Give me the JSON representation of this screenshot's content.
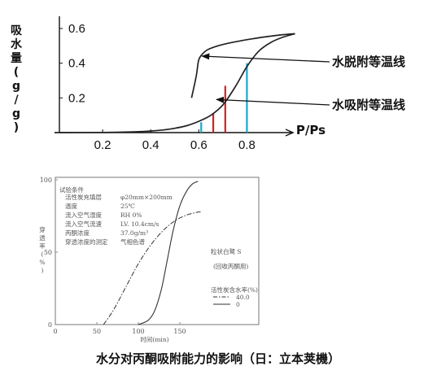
{
  "chart_data": [
    {
      "type": "line",
      "ylabel": "吸水量(g/g)",
      "xlabel": "P/Ps",
      "xlim": [
        0,
        1.0
      ],
      "ylim": [
        0,
        0.6
      ],
      "x_ticks": [
        0.2,
        0.4,
        0.6,
        0.8
      ],
      "x_tick_labels": [
        "0.2",
        "0.4",
        "0.6",
        "0.8"
      ],
      "y_ticks": [
        0.2,
        0.4,
        0.6
      ],
      "y_tick_labels": [
        "0.2",
        "0.4",
        "0.6"
      ],
      "series": [
        {
          "name": "水脱附等温线",
          "color": "#222222",
          "x": [
            0.57,
            0.59,
            0.6,
            0.62,
            0.64,
            0.68,
            0.74,
            0.82,
            0.92,
            1.0
          ],
          "y": [
            0.2,
            0.33,
            0.42,
            0.46,
            0.48,
            0.5,
            0.52,
            0.54,
            0.56,
            0.57
          ]
        },
        {
          "name": "水吸附等温线",
          "color": "#222222",
          "x": [
            0.0,
            0.2,
            0.35,
            0.45,
            0.5,
            0.55,
            0.6,
            0.65,
            0.7,
            0.75,
            0.8,
            0.85,
            0.9,
            0.95,
            1.0
          ],
          "y": [
            0.0,
            0.001,
            0.005,
            0.015,
            0.025,
            0.04,
            0.065,
            0.1,
            0.16,
            0.26,
            0.38,
            0.47,
            0.52,
            0.55,
            0.57
          ]
        }
      ],
      "markers": [
        {
          "x": 0.61,
          "y_top": 0.06,
          "color": "#1aa7c9"
        },
        {
          "x": 0.66,
          "y_top": 0.11,
          "color": "#d32020"
        },
        {
          "x": 0.71,
          "y_top": 0.27,
          "color": "#d32020"
        },
        {
          "x": 0.8,
          "y_top": 0.4,
          "color": "#1aa7c9"
        }
      ],
      "annotations": [
        {
          "text": "水脱附等温线",
          "point_x": 0.6,
          "point_y": 0.45
        },
        {
          "text": "水吸附等温线",
          "point_x": 0.66,
          "point_y": 0.2
        }
      ]
    },
    {
      "type": "line",
      "ylabel": "穿透率(%)",
      "xlabel": "时间(min)",
      "xlim": [
        0,
        180
      ],
      "ylim": [
        0,
        100
      ],
      "x_ticks": [
        0,
        50,
        100,
        150
      ],
      "x_tick_labels": [
        "0",
        "50",
        "100",
        "150"
      ],
      "y_ticks": [
        0,
        50,
        100
      ],
      "y_tick_labels": [
        "0",
        "50",
        "100"
      ],
      "conditions_title": "试验条件",
      "conditions": [
        [
          "活性炭充填层",
          "φ20mm×200mm"
        ],
        [
          "温度",
          "25℃"
        ],
        [
          "流入空气湿度",
          "RH 0%"
        ],
        [
          "流入空气流速",
          "LV. 10.4cm/s"
        ],
        [
          "丙酮浓度",
          "37.0g/m³"
        ],
        [
          "穿透浓度的测定",
          "气相色谱"
        ]
      ],
      "label_sample": "粒状白鹭 S",
      "label_recovery": "(回收丙酮用)",
      "legend_title": "活性炭含水率(%)",
      "series": [
        {
          "name": "40.0",
          "style": "dashed",
          "x": [
            58,
            70,
            85,
            100,
            115,
            130,
            145,
            160,
            175
          ],
          "y": [
            0,
            10,
            26,
            42,
            55,
            65,
            72,
            76,
            78
          ]
        },
        {
          "name": "0",
          "style": "solid",
          "x": [
            100,
            112,
            120,
            128,
            135,
            142,
            150,
            158,
            165,
            172
          ],
          "y": [
            0,
            3,
            10,
            25,
            45,
            65,
            82,
            92,
            97,
            99
          ]
        }
      ]
    }
  ],
  "caption": "水分对丙酮吸附能力的影响（日：立本荚機）"
}
